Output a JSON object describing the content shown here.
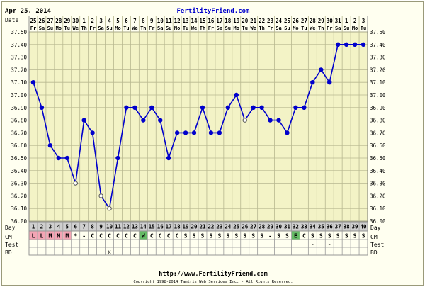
{
  "header": {
    "date": "Apr 25, 2014",
    "site": "FertilityFriend.com"
  },
  "footer": {
    "url": "http://www.FertilityFriend.com",
    "copyright": "Copyright 1998-2014 Tamtris Web Services Inc. - All Rights Reserved."
  },
  "colors": {
    "line": "#0000cc",
    "grid": "#b8b890",
    "background": "#f3f3c6",
    "menstruation": "#f4a4b4",
    "egg_white": "#66bb66",
    "url_blue": "#0000cc"
  },
  "chart_data": {
    "type": "line",
    "title": "",
    "row_labels": [
      "Date",
      "Day",
      "CM",
      "Test",
      "BD"
    ],
    "date_labels": [
      "25",
      "26",
      "27",
      "28",
      "29",
      "30",
      "1",
      "2",
      "3",
      "4",
      "5",
      "6",
      "7",
      "8",
      "9",
      "10",
      "11",
      "12",
      "13",
      "14",
      "15",
      "16",
      "17",
      "18",
      "19",
      "20",
      "21",
      "22",
      "23",
      "24",
      "25",
      "26",
      "27",
      "28",
      "29",
      "30",
      "31",
      "1",
      "2",
      "3"
    ],
    "weekdays": [
      "Fr",
      "Sa",
      "Su",
      "Mo",
      "Tu",
      "We",
      "Th",
      "Fr",
      "Sa",
      "Su",
      "Mo",
      "Tu",
      "We",
      "Th",
      "Fr",
      "Sa",
      "Su",
      "Mo",
      "Tu",
      "We",
      "Th",
      "Fr",
      "Sa",
      "Su",
      "Mo",
      "Tu",
      "We",
      "Th",
      "Fr",
      "Sa",
      "Su",
      "Mo",
      "Tu",
      "We",
      "Th",
      "Fr",
      "Sa",
      "Su",
      "Mo",
      "Tu"
    ],
    "days": [
      1,
      2,
      3,
      4,
      5,
      6,
      7,
      8,
      9,
      10,
      11,
      12,
      13,
      14,
      15,
      16,
      17,
      18,
      19,
      20,
      21,
      22,
      23,
      24,
      25,
      26,
      27,
      28,
      29,
      30,
      31,
      32,
      33,
      34,
      35,
      36,
      37,
      38,
      39,
      40
    ],
    "temperatures": [
      37.1,
      36.9,
      36.6,
      36.5,
      36.5,
      36.3,
      36.8,
      36.7,
      36.2,
      36.1,
      36.5,
      36.9,
      36.9,
      36.8,
      36.9,
      36.8,
      36.5,
      36.7,
      36.7,
      36.7,
      36.9,
      36.7,
      36.7,
      36.9,
      37.0,
      36.8,
      36.9,
      36.9,
      36.8,
      36.8,
      36.7,
      36.9,
      36.9,
      37.1,
      37.2,
      37.1,
      37.4,
      37.4,
      37.4,
      37.4
    ],
    "open_points": [
      6,
      9,
      10,
      26
    ],
    "ylim": [
      36.0,
      37.5
    ],
    "yticks": [
      "37.50",
      "37.40",
      "37.30",
      "37.20",
      "37.10",
      "37.00",
      "36.90",
      "36.80",
      "36.70",
      "36.60",
      "36.50",
      "36.40",
      "36.30",
      "36.20",
      "36.10",
      "36.00"
    ],
    "cm": [
      "L",
      "L",
      "M",
      "M",
      "M",
      "*",
      "-",
      "C",
      "C",
      "C",
      "C",
      "C",
      "C",
      "W",
      "C",
      "C",
      "C",
      "C",
      "S",
      "S",
      "S",
      "S",
      "S",
      "S",
      "S",
      "S",
      "S",
      "S",
      "-",
      "S",
      "S",
      "E",
      "C",
      "S",
      "S",
      "S",
      "S",
      "S",
      "S",
      "S"
    ],
    "test": [
      "",
      "",
      "",
      "",
      "",
      "",
      "",
      "",
      "",
      "",
      "",
      "",
      "",
      "",
      "",
      "",
      "",
      "",
      "",
      "",
      "",
      "",
      "",
      "",
      "",
      "",
      "",
      "",
      "",
      "",
      "",
      "",
      "",
      "-",
      "",
      "-",
      "",
      "",
      "",
      ""
    ],
    "bd": [
      "",
      "",
      "",
      "",
      "",
      "",
      "",
      "",
      "",
      "x",
      "",
      "",
      "",
      "",
      "",
      "",
      "",
      "",
      "",
      "",
      "",
      "",
      "",
      "",
      "",
      "",
      "",
      "",
      "",
      "",
      "",
      "",
      "",
      "",
      "",
      "",
      "",
      "",
      "",
      ""
    ],
    "grid": true
  }
}
